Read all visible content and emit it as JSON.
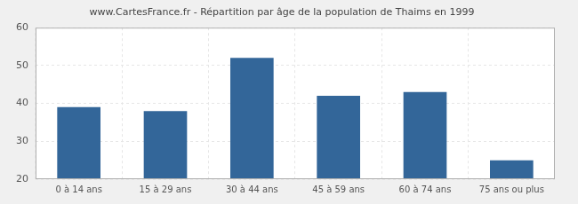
{
  "chart_data": {
    "type": "bar",
    "title": "www.CartesFrance.fr - Répartition par âge de la population de Thaims en 1999",
    "categories": [
      "0 à 14 ans",
      "15 à 29 ans",
      "30 à 44 ans",
      "45 à 59 ans",
      "60 à 74 ans",
      "75 ans ou plus"
    ],
    "values": [
      39,
      38,
      52,
      42,
      43,
      25
    ],
    "color": "#336699",
    "ylim": [
      20,
      60
    ],
    "yticks": [
      20,
      30,
      40,
      50,
      60
    ],
    "grid": true
  }
}
